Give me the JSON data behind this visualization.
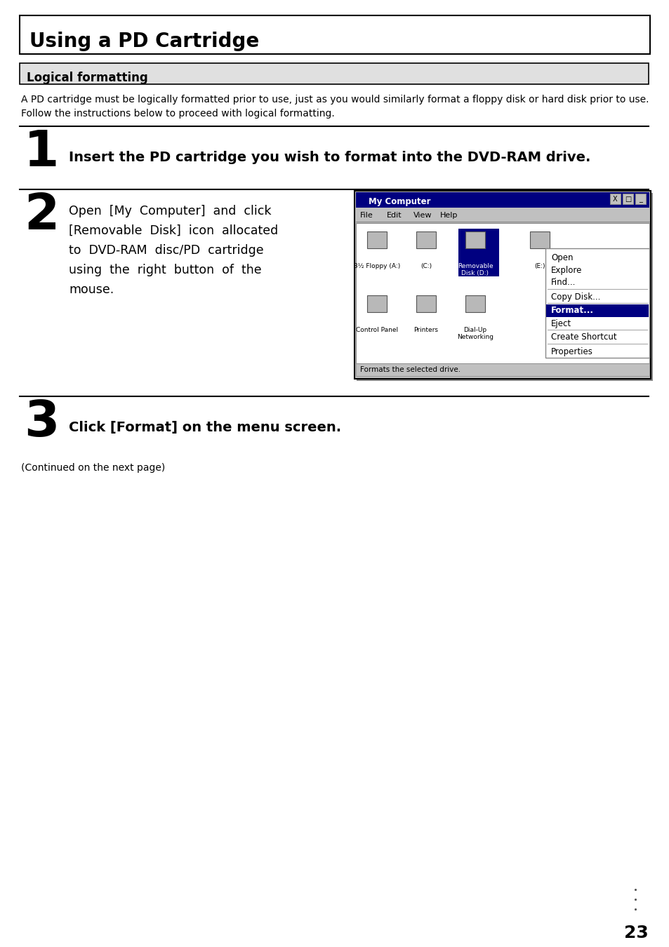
{
  "title": "Using a PD Cartridge",
  "subtitle": "Logical formatting",
  "intro_text1": "A PD cartridge must be logically formatted prior to use, just as you would similarly format a floppy disk or hard disk prior to use.",
  "intro_text2": "Follow the instructions below to proceed with logical formatting.",
  "step1_text": "Insert the PD cartridge you wish to format into the DVD-RAM drive.",
  "step2_lines": [
    "Open  [My  Computer]  and  click",
    "[Removable  Disk]  icon  allocated",
    "to  DVD-RAM  disc/PD  cartridge",
    "using  the  right  button  of  the",
    "mouse."
  ],
  "step3_text": "Click [Format] on the menu screen.",
  "continued": "(Continued on the next page)",
  "page_num": "23",
  "win_title": "My Computer",
  "win_menu_items": [
    "File",
    "Edit",
    "View",
    "Help"
  ],
  "drive_icons": [
    "3½ Floppy (A:)",
    "(C:)",
    "Removable\nDisk (D:)",
    "(E:)"
  ],
  "drive_icons2": [
    "Control Panel",
    "Printers",
    "Dial-Up\nNetworking"
  ],
  "win_status": "Formats the selected drive.",
  "ctx_menu": [
    "Open",
    "Explore",
    "Find...",
    "Copy Disk...",
    "Format...",
    "Eject",
    "Create Shortcut",
    "Properties"
  ],
  "ctx_highlighted_idx": 4,
  "ctx_sep_after": [
    2,
    3,
    5,
    6
  ]
}
